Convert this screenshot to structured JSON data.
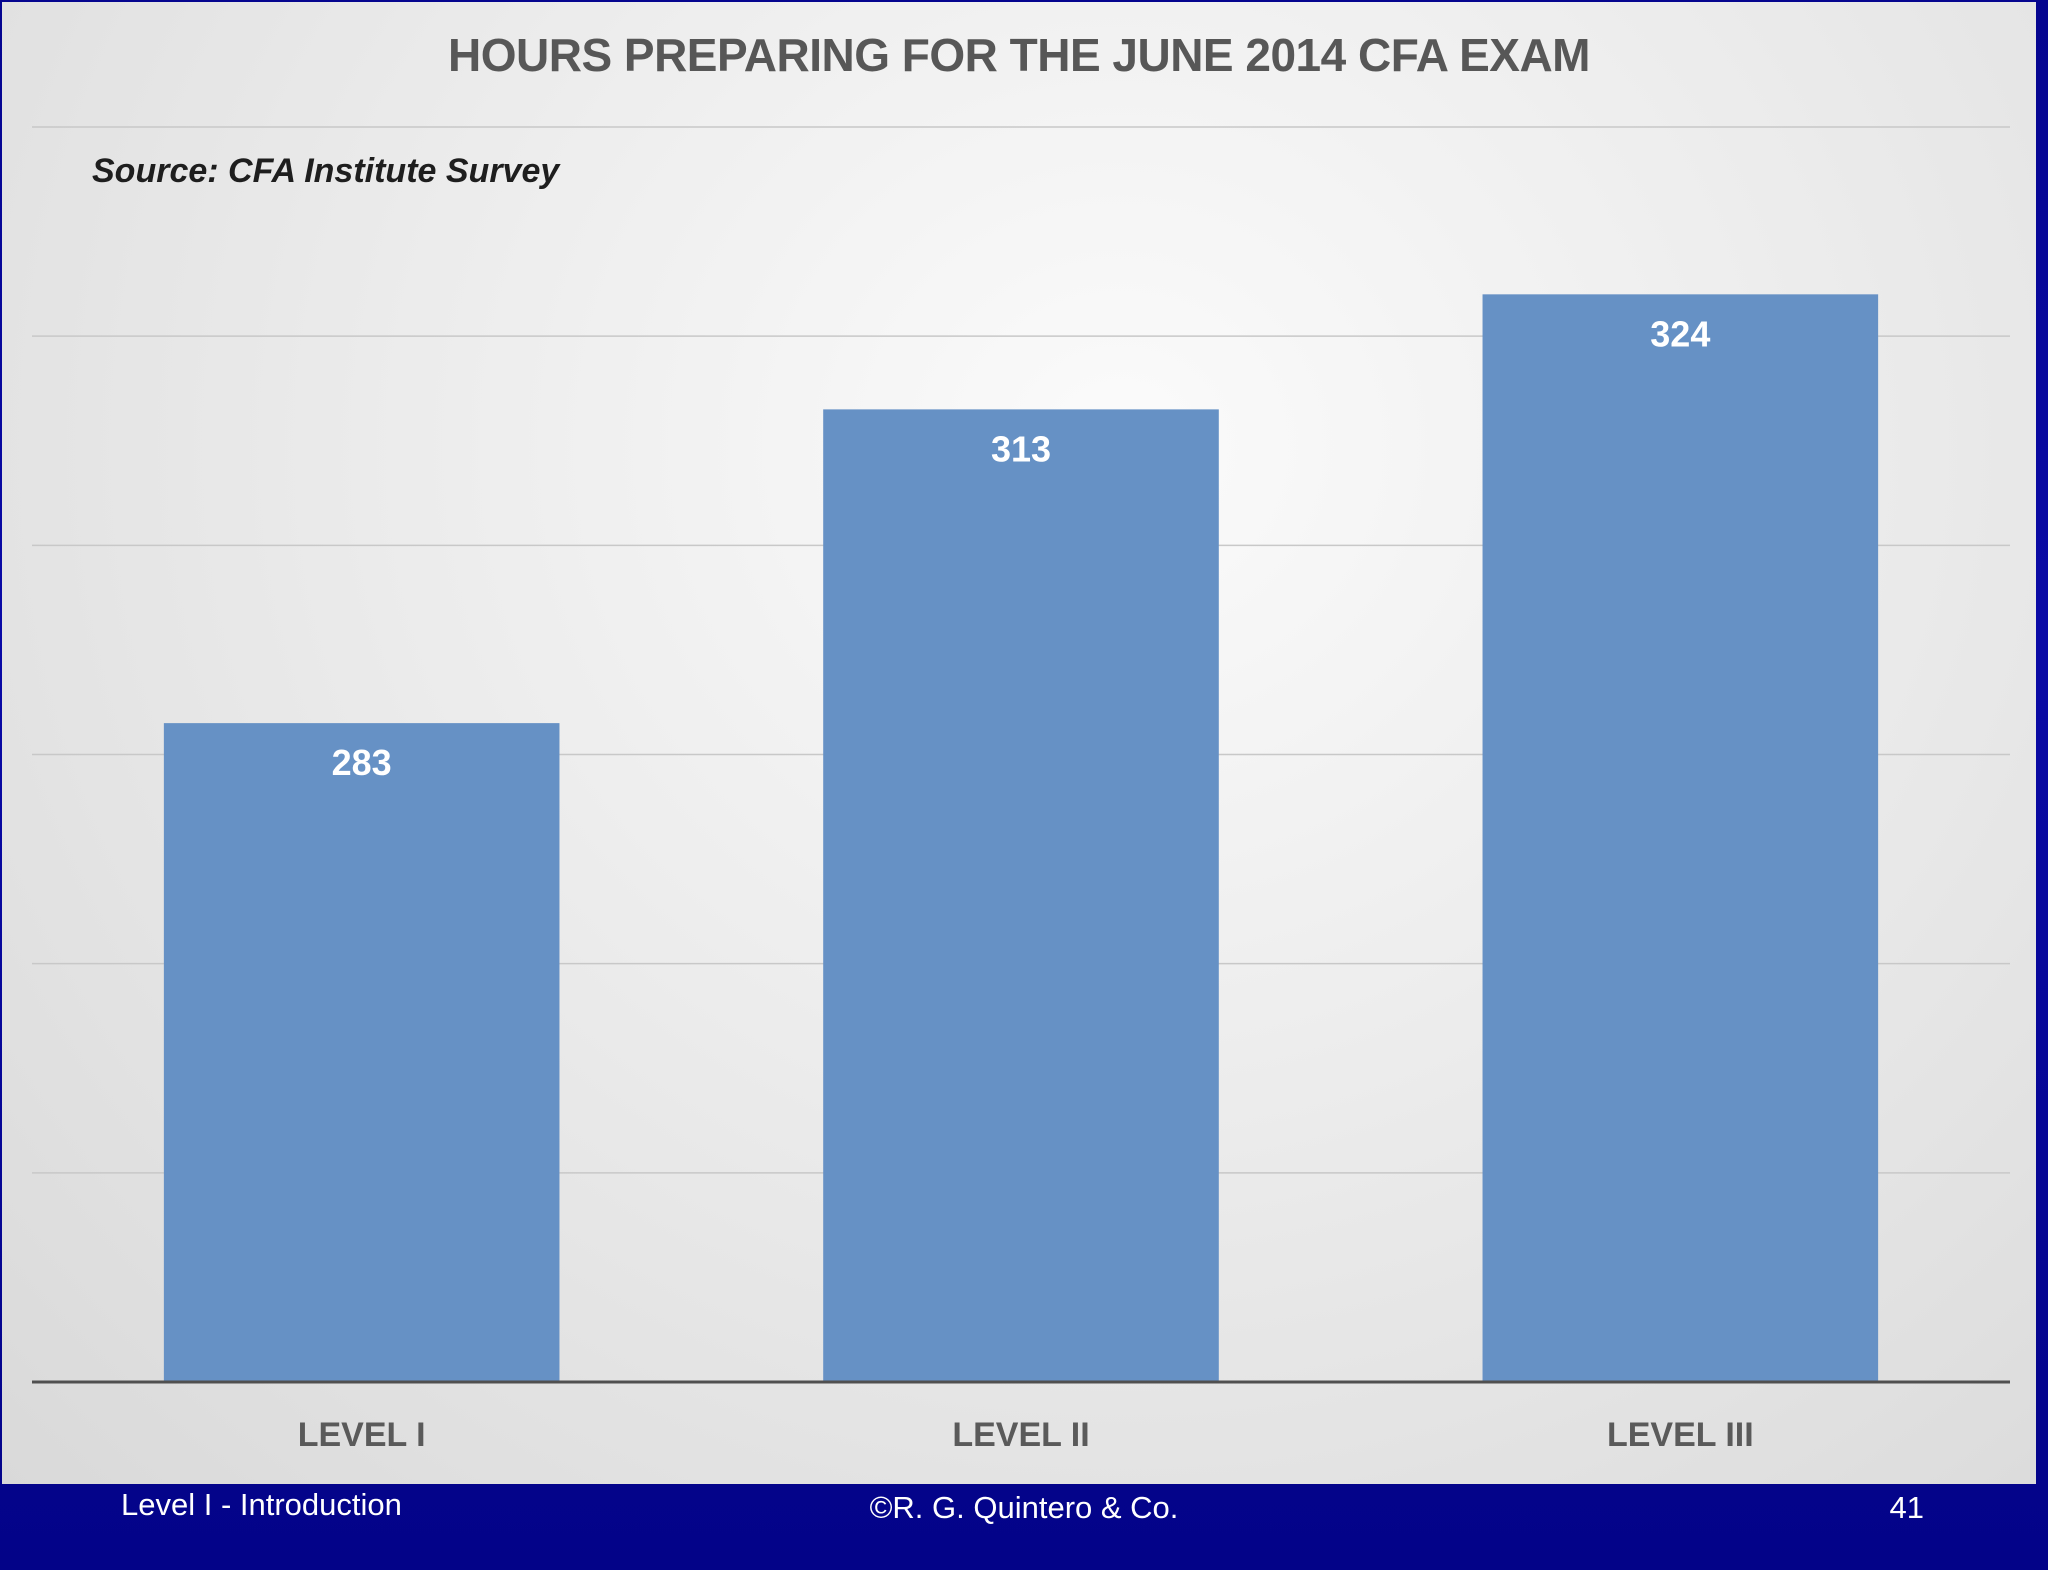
{
  "slide": {
    "footer_left": "Level I - Introduction",
    "footer_center": "©R. G. Quintero & Co.",
    "footer_right": "41"
  },
  "colors": {
    "bar": "#6691c5",
    "gridline": "#c8c8c8",
    "baseline": "#505050",
    "slide_background": "#03039a"
  },
  "chart_data": {
    "type": "bar",
    "title": "HOURS PREPARING FOR THE JUNE 2014 CFA EXAM",
    "source": "Source:  CFA Institute Survey",
    "categories": [
      "LEVEL I",
      "LEVEL II",
      "LEVEL III"
    ],
    "values": [
      283,
      313,
      324
    ],
    "data_labels": [
      "283",
      "313",
      "324"
    ],
    "xlabel": "",
    "ylabel": "",
    "ylim": [
      220,
      340
    ],
    "gridlines": [
      240,
      260,
      280,
      300,
      320,
      340
    ],
    "grid": true,
    "legend": false
  }
}
